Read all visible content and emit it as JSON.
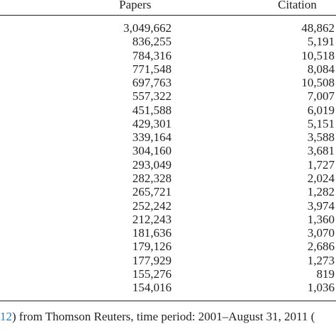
{
  "header": {
    "columns": [
      "Papers",
      "Citation"
    ]
  },
  "table": {
    "rows": [
      [
        "3,049,662",
        "48,862"
      ],
      [
        "836,255",
        "5,191"
      ],
      [
        "784,316",
        "10,518"
      ],
      [
        "771,548",
        "8,084"
      ],
      [
        "697,763",
        "10,508"
      ],
      [
        "557,322",
        "7,007"
      ],
      [
        "451,588",
        "6,019"
      ],
      [
        "429,301",
        "5,151"
      ],
      [
        "339,164",
        "3,588"
      ],
      [
        "304,160",
        "3,681"
      ],
      [
        "293,049",
        "1,727"
      ],
      [
        "282,328",
        "2,024"
      ],
      [
        "265,721",
        "1,282"
      ],
      [
        "252,242",
        "3,974"
      ],
      [
        "212,243",
        "1,360"
      ],
      [
        "181,636",
        "3,070"
      ],
      [
        "179,126",
        "2,686"
      ],
      [
        "177,929",
        "1,273"
      ],
      [
        "155,276",
        "819"
      ],
      [
        "154,016",
        "1,036"
      ]
    ]
  },
  "footer": {
    "link": "12",
    "text": ") from Thomson Reuters, time period: 2001–August 31, 2011 ("
  }
}
